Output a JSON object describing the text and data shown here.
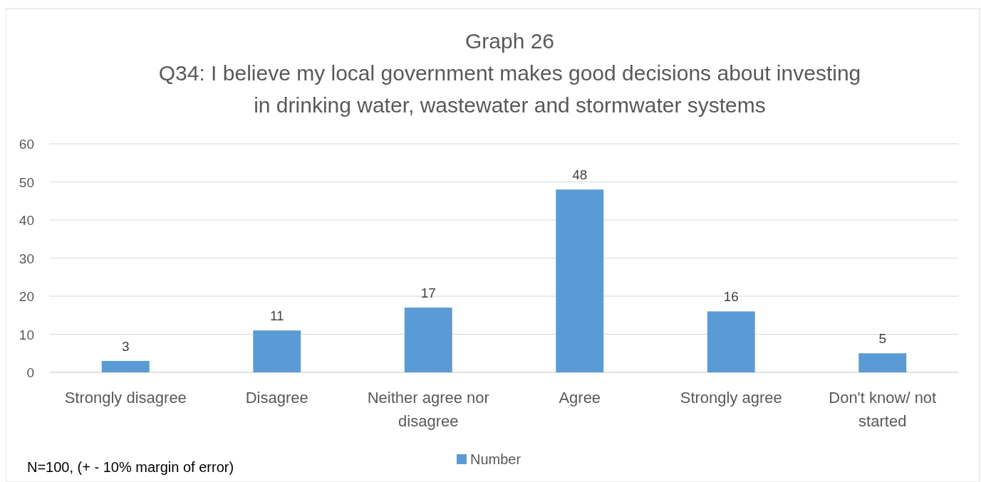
{
  "chart_data": {
    "type": "bar",
    "title": "Graph 26",
    "subtitle": "Q34: I believe my local government makes good decisions about investing in drinking water, wastewater and stormwater systems",
    "categories": [
      "Strongly disagree",
      "Disagree",
      "Neither agree nor disagree",
      "Agree",
      "Strongly agree",
      "Don't know/ not started"
    ],
    "series": [
      {
        "name": "Number",
        "color": "#5b9bd5",
        "values": [
          3,
          11,
          17,
          48,
          16,
          5
        ]
      }
    ],
    "ylim": [
      0,
      60
    ],
    "yticks": [
      0,
      10,
      20,
      30,
      40,
      50,
      60
    ],
    "grid": "y",
    "legend": "bottom",
    "data_labels": true,
    "annotations": [
      "N=100, (+ - 10% margin of error)"
    ]
  }
}
